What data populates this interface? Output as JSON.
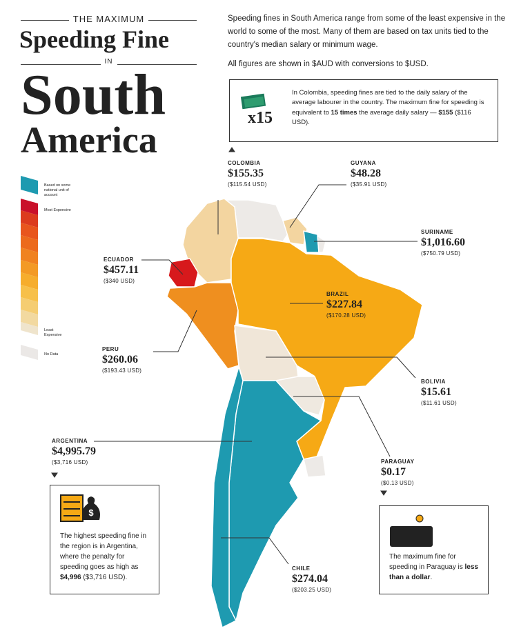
{
  "title": {
    "kicker": "THE MAXIMUM",
    "main": "Speeding Fine",
    "connector": "IN",
    "region_line1": "South",
    "region_line2": "America"
  },
  "intro": [
    "Speeding fines in South America range from some of the least expensive in the world to some of the most. Many of them are based on tax units tied to the country's median salary or minimum wage.",
    "All figures are shown in $AUD with conversions to $USD."
  ],
  "colombia_note": {
    "multiplier": "x15",
    "text_before": "In Colombia, speeding fines are tied to the daily salary of the average labourer in the country. The maximum fine for speeding is equivalent to ",
    "bold1": "15 times",
    "text_mid": " the average daily salary — ",
    "bold2": "$155",
    "text_after": " ($116 USD)."
  },
  "legend": [
    {
      "label": "Based on some national unit of account"
    },
    {
      "label": "Most Expensive"
    },
    {
      "label": "Least Expensive"
    },
    {
      "label": "No Data"
    }
  ],
  "countries": [
    {
      "name": "COLOMBIA",
      "fine": "$155.35",
      "usd": "($115.54 USD)"
    },
    {
      "name": "GUYANA",
      "fine": "$48.28",
      "usd": "($35.91 USD)"
    },
    {
      "name": "SURINAME",
      "fine": "$1,016.60",
      "usd": "($750.79 USD)"
    },
    {
      "name": "ECUADOR",
      "fine": "$457.11",
      "usd": "($340 USD)"
    },
    {
      "name": "BRAZIL",
      "fine": "$227.84",
      "usd": "($170.28 USD)"
    },
    {
      "name": "PERU",
      "fine": "$260.06",
      "usd": "($193.43 USD)"
    },
    {
      "name": "BOLIVIA",
      "fine": "$15.61",
      "usd": "($11.61 USD)"
    },
    {
      "name": "ARGENTINA",
      "fine": "$4,995.79",
      "usd": "($3,716 USD)"
    },
    {
      "name": "PARAGUAY",
      "fine": "$0.17",
      "usd": "($0.13 USD)"
    },
    {
      "name": "CHILE",
      "fine": "$274.04",
      "usd": "($203.25 USD)"
    }
  ],
  "argentina_note": {
    "text_before": "The highest speeding fine in the region is in Argentina, where the penalty for speeding goes as high as ",
    "bold": "$4,996",
    "text_after": " ($3,716 USD)."
  },
  "paraguay_note": {
    "text_before": "The maximum fine for speeding in Paraguay is ",
    "bold": "less than a dollar",
    "text_after": "."
  }
}
